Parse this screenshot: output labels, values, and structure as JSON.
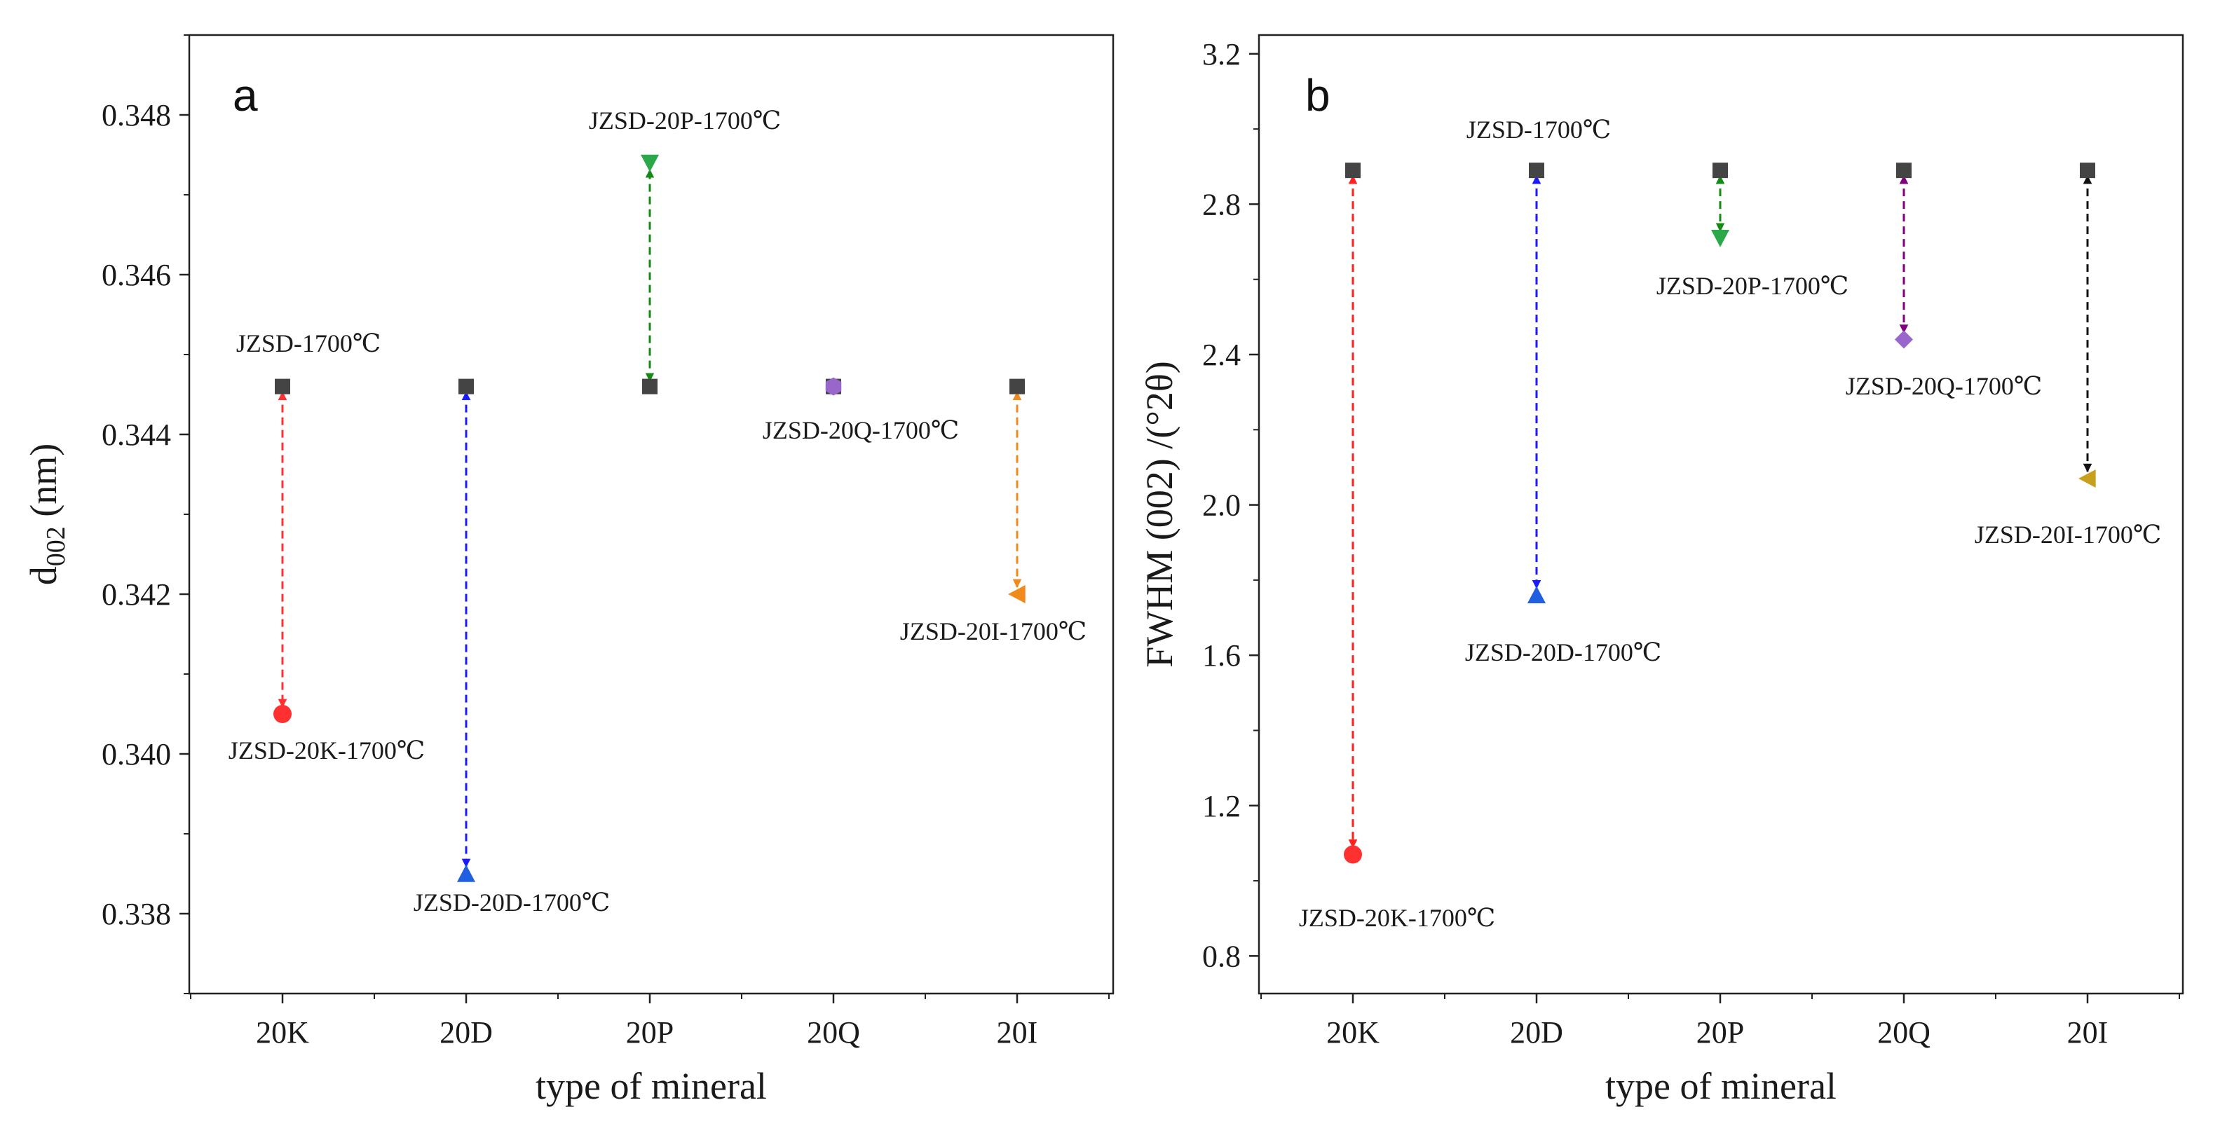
{
  "chart_data": [
    {
      "type": "scatter",
      "panel_label": "a",
      "xlabel": "type of mineral",
      "ylabel_main": "d",
      "ylabel_sub": "002",
      "ylabel_unit": " (nm)",
      "categories": [
        "20K",
        "20D",
        "20P",
        "20Q",
        "20I"
      ],
      "ylim": [
        0.337,
        0.349
      ],
      "yticks": [
        0.338,
        0.34,
        0.342,
        0.344,
        0.346,
        0.348
      ],
      "ytick_labels": [
        "0.338",
        "0.340",
        "0.342",
        "0.344",
        "0.346",
        "0.348"
      ],
      "reference": {
        "name": "JZSD-1700℃",
        "values": [
          0.3446,
          0.3446,
          0.3446,
          0.3446,
          0.3446
        ],
        "color": "#444444"
      },
      "series": [
        {
          "name": "JZSD-20K-1700℃",
          "category": "20K",
          "value": 0.3405,
          "marker": "circle",
          "color": "#ff3030"
        },
        {
          "name": "JZSD-20D-1700℃",
          "category": "20D",
          "value": 0.3385,
          "marker": "triangle-up",
          "color": "#1f5fe0"
        },
        {
          "name": "JZSD-20P-1700℃",
          "category": "20P",
          "value": 0.3474,
          "marker": "triangle-down",
          "color": "#2aa84a"
        },
        {
          "name": "JZSD-20Q-1700℃",
          "category": "20Q",
          "value": 0.3446,
          "marker": "hexagon",
          "color": "#9966cc"
        },
        {
          "name": "JZSD-20I-1700℃",
          "category": "20I",
          "value": 0.342,
          "marker": "triangle-left",
          "color": "#f08a1c"
        }
      ],
      "arrow_colors": [
        "#ff3030",
        "#1a1aff",
        "#138a13",
        "#9966cc",
        "#f08a1c"
      ]
    },
    {
      "type": "scatter",
      "panel_label": "b",
      "xlabel": "type of mineral",
      "ylabel": "FWHM (002) /(°2θ)",
      "categories": [
        "20K",
        "20D",
        "20P",
        "20Q",
        "20I"
      ],
      "ylim": [
        0.7,
        3.25
      ],
      "yticks": [
        0.8,
        1.2,
        1.6,
        2.0,
        2.4,
        2.8,
        3.2
      ],
      "ytick_labels": [
        "0.8",
        "1.2",
        "1.6",
        "2.0",
        "2.4",
        "2.8",
        "3.2"
      ],
      "reference": {
        "name": "JZSD-1700℃",
        "values": [
          2.89,
          2.89,
          2.89,
          2.89,
          2.89
        ],
        "color": "#444444"
      },
      "series": [
        {
          "name": "JZSD-20K-1700℃",
          "category": "20K",
          "value": 1.07,
          "marker": "circle",
          "color": "#ff3030"
        },
        {
          "name": "JZSD-20D-1700℃",
          "category": "20D",
          "value": 1.76,
          "marker": "triangle-up",
          "color": "#1f5fe0"
        },
        {
          "name": "JZSD-20P-1700℃",
          "category": "20P",
          "value": 2.71,
          "marker": "triangle-down",
          "color": "#2aa84a"
        },
        {
          "name": "JZSD-20Q-1700℃",
          "category": "20Q",
          "value": 2.44,
          "marker": "diamond",
          "color": "#9966cc"
        },
        {
          "name": "JZSD-20I-1700℃",
          "category": "20I",
          "value": 2.07,
          "marker": "triangle-left",
          "color": "#c8a020"
        }
      ],
      "arrow_colors": [
        "#ff2020",
        "#1a1aff",
        "#138a13",
        "#800080",
        "#111111"
      ]
    }
  ]
}
